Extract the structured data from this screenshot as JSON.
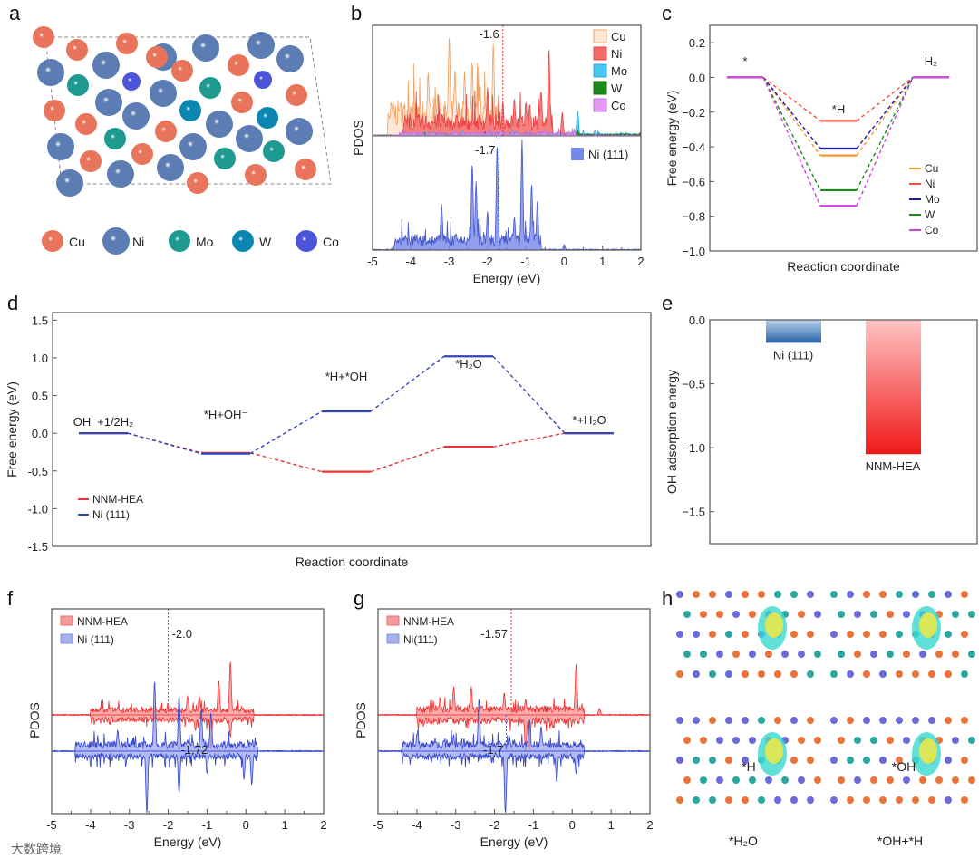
{
  "panel_labels": [
    "a",
    "b",
    "c",
    "d",
    "e",
    "f",
    "g",
    "h"
  ],
  "panel_a": {
    "legend": [
      {
        "label": "Cu",
        "color": "#e8745c"
      },
      {
        "label": "Ni",
        "color": "#5b7db3"
      },
      {
        "label": "Mo",
        "color": "#1f9a90"
      },
      {
        "label": "W",
        "color": "#0a86b0"
      },
      {
        "label": "Co",
        "color": "#4b55d8"
      }
    ]
  },
  "panel_h": {
    "labels": [
      "*H",
      "*OH",
      "*H₂O",
      "*OH+*H"
    ]
  },
  "watermark": "大数跨境",
  "chart_data": [
    {
      "id": "b",
      "type": "area",
      "title": "",
      "xlabel": "Energy (eV)",
      "ylabel": "PDOS",
      "xlim": [
        -5,
        2
      ],
      "xticks": [
        "-5",
        "-4",
        "-3",
        "-2",
        "-1",
        "0",
        "1",
        "2"
      ],
      "upper": {
        "series": [
          {
            "name": "Cu",
            "fill": "#fde6d4",
            "stroke": "#f0a060",
            "peaks": [
              [
                -4.3,
                0.25
              ],
              [
                -3.55,
                0.6
              ],
              [
                -3.3,
                0.4
              ],
              [
                -3.0,
                0.93
              ],
              [
                -2.85,
                0.62
              ],
              [
                -2.6,
                0.6
              ],
              [
                -2.4,
                0.7
              ],
              [
                -2.2,
                0.5
              ],
              [
                -2.0,
                0.45
              ],
              [
                -1.85,
                0.86
              ]
            ],
            "band": [
              -4.6,
              -1.7,
              0.28
            ]
          },
          {
            "name": "Ni",
            "fill": "#f46a6a",
            "stroke": "#e84444",
            "peaks": [
              [
                -2.0,
                0.45
              ],
              [
                -1.6,
                0.32
              ],
              [
                -1.3,
                0.35
              ],
              [
                -1.0,
                0.32
              ],
              [
                -0.9,
                0.3
              ],
              [
                -0.6,
                0.42
              ],
              [
                -0.4,
                0.82
              ],
              [
                -0.05,
                0.22
              ]
            ],
            "band": [
              -4.2,
              -0.3,
              0.17
            ]
          },
          {
            "name": "Mo",
            "fill": "#48c8f0",
            "stroke": "#2aa8e0",
            "peaks": [
              [
                0.35,
                0.24
              ],
              [
                0.8,
                0.05
              ]
            ],
            "band": [
              -4.3,
              2,
              0.02
            ]
          },
          {
            "name": "W",
            "fill": "#1a8a1a",
            "stroke": "#147014",
            "peaks": [
              [
                0.35,
                0.05
              ]
            ],
            "band": [
              -4.3,
              2,
              0.015
            ]
          },
          {
            "name": "Co",
            "fill": "#e29af2",
            "stroke": "#c070e0",
            "peaks": [
              [
                -1.65,
                0.05
              ]
            ],
            "band": [
              -4.3,
              0.3,
              0.03
            ]
          }
        ],
        "d_band_center": {
          "value": -1.6,
          "label": "-1.6",
          "color": "#e53030"
        }
      },
      "lower": {
        "series": [
          {
            "name": "Ni (111)",
            "fill": "#7687ea",
            "stroke": "#4458cc",
            "peaks": [
              [
                -4.4,
                0.1
              ],
              [
                -3.2,
                0.42
              ],
              [
                -2.4,
                0.78
              ],
              [
                -2.3,
                0.62
              ],
              [
                -2.0,
                0.35
              ],
              [
                -1.75,
                0.95
              ],
              [
                -1.3,
                0.3
              ],
              [
                -1.1,
                1.0
              ],
              [
                -0.85,
                0.6
              ],
              [
                -0.7,
                0.45
              ],
              [
                0.0,
                0.05
              ]
            ],
            "band": [
              -4.4,
              -0.6,
              0.12
            ]
          }
        ],
        "d_band_center": {
          "value": -1.7,
          "label": "-1.7",
          "color": "#4458cc"
        }
      }
    },
    {
      "id": "c",
      "type": "line",
      "title": "",
      "xlabel": "Reaction coordinate",
      "ylabel": "Free energy (eV)",
      "ylim": [
        -1.0,
        0.3
      ],
      "yticks": [
        0.2,
        0.0,
        -0.2,
        -0.4,
        -0.6,
        -0.8,
        -1.0
      ],
      "ytick_labels": [
        "0.2",
        "0.0",
        "−0.2",
        "−0.4",
        "−0.6",
        "−0.8",
        "−1.0"
      ],
      "stages": [
        "*",
        "*H",
        "H₂"
      ],
      "series": [
        {
          "name": "Cu",
          "color": "#f39a2e",
          "values": [
            0,
            -0.45,
            0
          ]
        },
        {
          "name": "Ni",
          "color": "#f0503c",
          "values": [
            0,
            -0.25,
            0
          ]
        },
        {
          "name": "Mo",
          "color": "#1a1aa8",
          "values": [
            0,
            -0.41,
            0
          ]
        },
        {
          "name": "W",
          "color": "#1a8a1a",
          "values": [
            0,
            -0.65,
            0
          ]
        },
        {
          "name": "Co",
          "color": "#d040e0",
          "values": [
            0,
            -0.74,
            0
          ]
        }
      ],
      "legend_position": "bottom-right"
    },
    {
      "id": "d",
      "type": "line",
      "title": "",
      "xlabel": "Reaction coordinate",
      "ylabel": "Free energy (eV)",
      "ylim": [
        -1.5,
        1.6
      ],
      "yticks": [
        1.5,
        1.0,
        0.5,
        0.0,
        -0.5,
        -1.0,
        -1.5
      ],
      "ytick_labels": [
        "1.5",
        "1.0",
        "0.5",
        "0.0",
        "-0.5",
        "-1.0",
        "-1.5"
      ],
      "stages": [
        "OH⁻+1/2H₂",
        "*H+OH⁻",
        "*H+*OH",
        "*H₂O",
        "*+H₂O"
      ],
      "series": [
        {
          "name": "NNM-HEA",
          "color": "#ee3333",
          "values": [
            0,
            -0.26,
            -0.51,
            -0.18,
            0
          ]
        },
        {
          "name": "Ni (111)",
          "color": "#3344bb",
          "values": [
            0,
            -0.27,
            0.29,
            1.02,
            0
          ]
        }
      ],
      "legend_position": "bottom-left"
    },
    {
      "id": "e",
      "type": "bar",
      "title": "",
      "xlabel": "",
      "ylabel": "OH adsorption energy",
      "ylim": [
        -1.75,
        0
      ],
      "yticks": [
        0.0,
        -0.5,
        -1.0,
        -1.5
      ],
      "ytick_labels": [
        "0.0",
        "−0.5",
        "−1.0",
        "−1.5"
      ],
      "categories": [
        "Ni (111)",
        "NNM-HEA"
      ],
      "values": [
        -0.18,
        -1.05
      ],
      "colors": [
        [
          "#b8d2ec",
          "#2a64a8"
        ],
        [
          "#ffc4c4",
          "#f01818"
        ]
      ]
    },
    {
      "id": "f",
      "type": "area",
      "title": "",
      "xlabel": "Energy (eV)",
      "ylabel": "PDOS",
      "xlim": [
        -5,
        2
      ],
      "xticks": [
        "-5",
        "-4",
        "-3",
        "-2",
        "-1",
        "0",
        "1",
        "2"
      ],
      "legend": [
        {
          "name": "NNM-HEA",
          "color": "#f07070"
        },
        {
          "name": "Ni (111)",
          "color": "#8090e8"
        }
      ],
      "series": [
        {
          "name": "NNM-HEA",
          "fill": "#f89090",
          "stroke": "#ee3333",
          "up": [
            [
              -1.5,
              0.3
            ],
            [
              -1.2,
              0.3
            ],
            [
              -0.7,
              0.55
            ],
            [
              -0.4,
              0.85
            ],
            [
              -3.3,
              0.12
            ]
          ],
          "down": [
            [
              -1.3,
              0.25
            ],
            [
              -0.9,
              0.55
            ],
            [
              -0.4,
              0.35
            ],
            [
              -2.0,
              0.12
            ]
          ],
          "band": [
            -4.0,
            0.2,
            0.1
          ]
        },
        {
          "name": "Ni (111)",
          "fill": "#98a4f0",
          "stroke": "#3344cc",
          "up": [
            [
              -3.3,
              0.3
            ],
            [
              -2.35,
              1.0
            ],
            [
              -1.72,
              0.8
            ],
            [
              -1.15,
              0.6
            ],
            [
              -0.9,
              0.55
            ]
          ],
          "down": [
            [
              -2.55,
              1.1
            ],
            [
              -1.72,
              0.75
            ],
            [
              -1.0,
              0.4
            ],
            [
              -0.05,
              0.5
            ],
            [
              0.15,
              0.6
            ]
          ],
          "band": [
            -4.4,
            0.3,
            0.12
          ]
        }
      ],
      "markers": [
        {
          "value": -2.0,
          "label": "-2.0",
          "color": "#ee3333"
        },
        {
          "value": -1.72,
          "label": "-1.72",
          "color": "#4455cc"
        }
      ]
    },
    {
      "id": "g",
      "type": "area",
      "title": "",
      "xlabel": "Energy (eV)",
      "ylabel": "PDOS",
      "xlim": [
        -5,
        2
      ],
      "xticks": [
        "-5",
        "-4",
        "-3",
        "-2",
        "-1",
        "0",
        "1",
        "2"
      ],
      "legend": [
        {
          "name": "NNM-HEA",
          "color": "#f07070"
        },
        {
          "name": "Ni(111)",
          "color": "#8090e8"
        }
      ],
      "series": [
        {
          "name": "NNM-HEA",
          "fill": "#f89090",
          "stroke": "#ee3333",
          "up": [
            [
              -3.05,
              0.45
            ],
            [
              -2.6,
              0.45
            ],
            [
              -1.75,
              0.35
            ],
            [
              -1.2,
              0.25
            ],
            [
              0.1,
              0.8
            ],
            [
              0.7,
              0.1
            ]
          ],
          "down": [
            [
              -1.2,
              0.6
            ],
            [
              -1.1,
              0.55
            ],
            [
              -0.5,
              0.2
            ]
          ],
          "band": [
            -4.0,
            0.3,
            0.12
          ]
        },
        {
          "name": "Ni(111)",
          "fill": "#98a4f0",
          "stroke": "#3344cc",
          "up": [
            [
              -2.4,
              0.75
            ],
            [
              -1.1,
              0.45
            ],
            [
              -0.8,
              0.35
            ],
            [
              -3.3,
              0.15
            ]
          ],
          "down": [
            [
              -1.72,
              1.1
            ],
            [
              -0.4,
              0.55
            ],
            [
              0.1,
              0.4
            ],
            [
              -3.0,
              0.15
            ]
          ],
          "band": [
            -4.4,
            0.3,
            0.12
          ]
        }
      ],
      "markers": [
        {
          "value": -1.57,
          "label": "-1.57",
          "color": "#ee3333"
        },
        {
          "value": -1.7,
          "label": "-1.7",
          "color": "#4455cc"
        }
      ]
    }
  ]
}
